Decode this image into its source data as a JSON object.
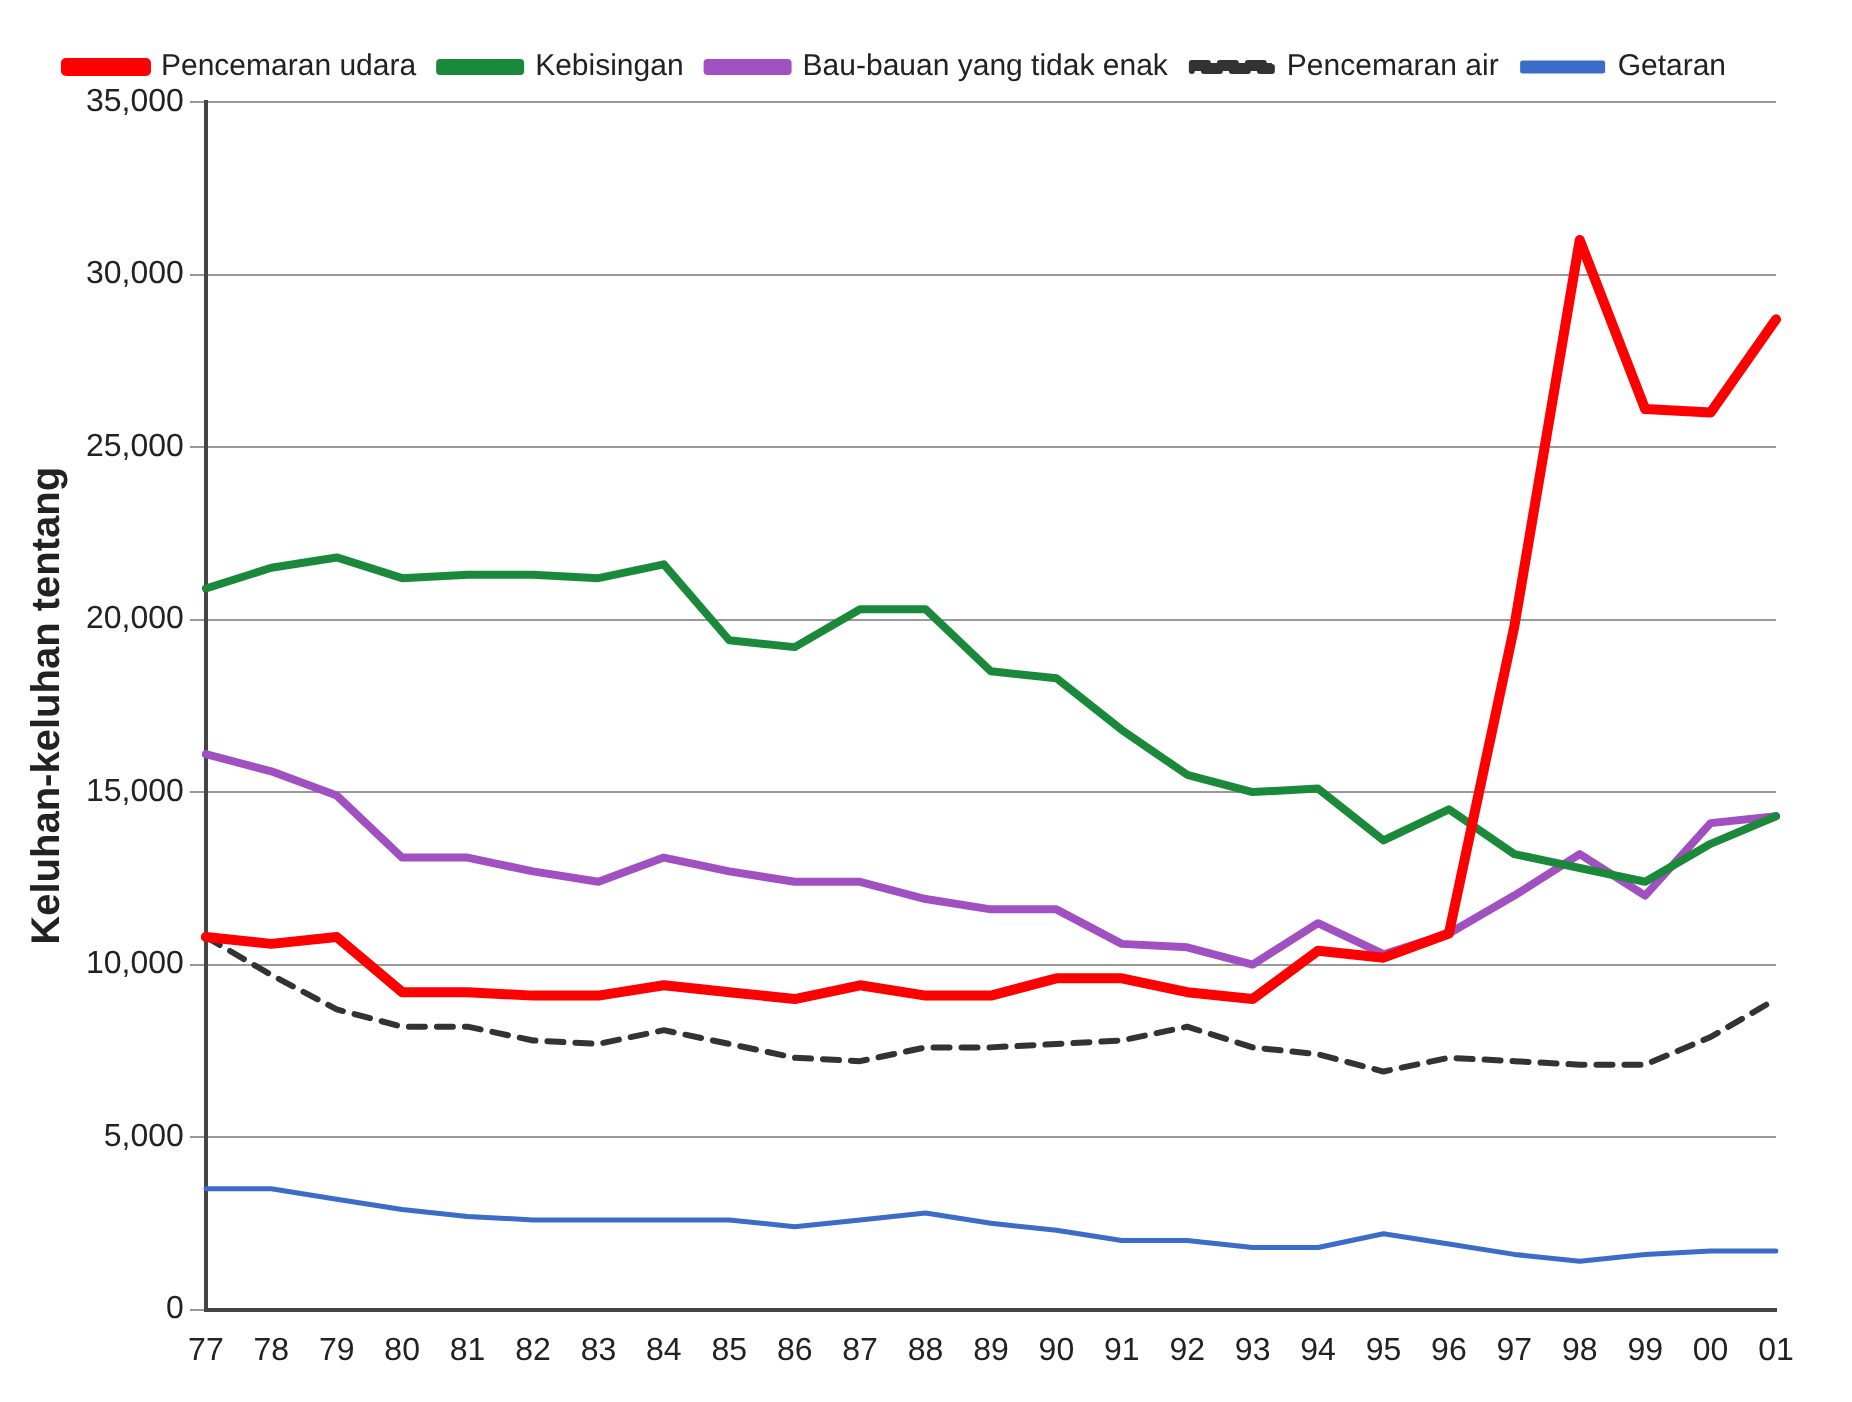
{
  "chart_data": {
    "type": "line",
    "ylabel": "Keluhan-keluhan tentang",
    "categories": [
      "77",
      "78",
      "79",
      "80",
      "81",
      "82",
      "83",
      "84",
      "85",
      "86",
      "87",
      "88",
      "89",
      "90",
      "91",
      "92",
      "93",
      "94",
      "95",
      "96",
      "97",
      "98",
      "99",
      "00",
      "01"
    ],
    "series": [
      {
        "name": "Pencemaran udara",
        "color": "#ff0000",
        "values": [
          10800,
          10600,
          10800,
          9200,
          9200,
          9100,
          9100,
          9400,
          9200,
          9000,
          9400,
          9100,
          9100,
          9600,
          9600,
          9200,
          9000,
          10400,
          10200,
          10900,
          19800,
          31000,
          26100,
          26000,
          28700
        ]
      },
      {
        "name": "Kebisingan",
        "color": "#1a8a3a",
        "values": [
          20900,
          21500,
          21800,
          21200,
          21300,
          21300,
          21200,
          21600,
          19400,
          19200,
          20300,
          20300,
          18500,
          18300,
          16800,
          15500,
          15000,
          15100,
          13600,
          14500,
          13200,
          12800,
          12400,
          13500,
          14300
        ]
      },
      {
        "name": "Bau-bauan yang tidak enak",
        "color": "#a050c0",
        "values": [
          16100,
          15600,
          14900,
          13100,
          13100,
          12700,
          12400,
          13100,
          12700,
          12400,
          12400,
          11900,
          11600,
          11600,
          10600,
          10500,
          10000,
          11200,
          10300,
          10900,
          12000,
          13200,
          12000,
          14100,
          14300
        ]
      },
      {
        "name": "Pencemaran air",
        "color": "#333333",
        "line_style": "dashed",
        "values": [
          10800,
          9700,
          8700,
          8200,
          8200,
          7800,
          7700,
          8100,
          7700,
          7300,
          7200,
          7600,
          7600,
          7700,
          7800,
          8200,
          7600,
          7400,
          6900,
          7300,
          7200,
          7100,
          7100,
          7900,
          9000
        ]
      },
      {
        "name": "Getaran",
        "color": "#3a6cc8",
        "values": [
          3500,
          3500,
          3200,
          2900,
          2700,
          2600,
          2600,
          2600,
          2600,
          2400,
          2600,
          2800,
          2500,
          2300,
          2000,
          2000,
          1800,
          1800,
          2200,
          1900,
          1600,
          1400,
          1600,
          1700,
          1700
        ]
      }
    ],
    "ylim": [
      0,
      35000
    ],
    "yticks": [
      0,
      {
        "value": 5000,
        "label": "5,000"
      },
      {
        "value": 10000,
        "label": "10,000"
      },
      {
        "value": 15000,
        "label": "15,000"
      },
      {
        "value": 20000,
        "label": "20,000"
      },
      {
        "value": 25000,
        "label": "25,000"
      },
      {
        "value": 30000,
        "label": "30,000"
      },
      {
        "value": 35000,
        "label": "35,000"
      }
    ],
    "grid": "y",
    "legend": "top",
    "marker": "none",
    "line_style": "solid"
  }
}
